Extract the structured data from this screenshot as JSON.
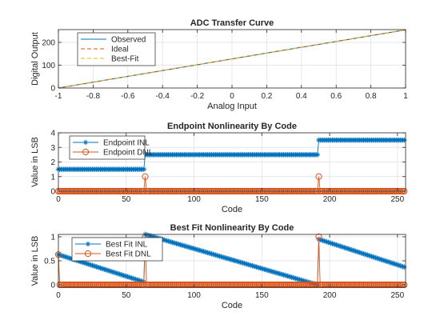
{
  "colors": {
    "blue": "#0072BD",
    "orange": "#D95319",
    "yellow": "#EDB120"
  },
  "chart_data": [
    {
      "type": "line",
      "title": "ADC Transfer Curve",
      "xlabel": "Analog Input",
      "ylabel": "Digital Output",
      "xlim": [
        -1,
        1
      ],
      "ylim": [
        0,
        256
      ],
      "xticks": [
        -1,
        -0.8,
        -0.6,
        -0.4,
        -0.2,
        0,
        0.2,
        0.4,
        0.6,
        0.8,
        1
      ],
      "xtick_labels": [
        "-1",
        "-0.8",
        "-0.6",
        "-0.4",
        "-0.2",
        "0",
        "0.2",
        "0.4",
        "0.6",
        "0.8",
        "1"
      ],
      "yticks": [
        0,
        100,
        200
      ],
      "ytick_labels": [
        "0",
        "100",
        "200"
      ],
      "grid": true,
      "legend": "top-left",
      "series": [
        {
          "name": "Observed",
          "color": "#0072BD",
          "style": "solid",
          "x": [
            -1,
            1
          ],
          "y": [
            0,
            255
          ]
        },
        {
          "name": "Ideal",
          "color": "#D95319",
          "style": "dashed",
          "x": [
            -1,
            1
          ],
          "y": [
            0,
            255
          ]
        },
        {
          "name": "Best-Fit",
          "color": "#EDB120",
          "style": "dashed",
          "x": [
            -1,
            1
          ],
          "y": [
            0,
            255
          ]
        }
      ]
    },
    {
      "type": "line",
      "title": "Endpoint Nonlinearity By Code",
      "xlabel": "Code",
      "ylabel": "Value in LSB",
      "xlim": [
        0,
        256
      ],
      "ylim": [
        0,
        4
      ],
      "xticks": [
        0,
        50,
        100,
        150,
        200,
        250
      ],
      "xtick_labels": [
        "0",
        "50",
        "100",
        "150",
        "200",
        "250"
      ],
      "yticks": [
        0,
        1,
        2,
        3,
        4
      ],
      "ytick_labels": [
        "0",
        "1",
        "2",
        "3",
        "4"
      ],
      "grid": true,
      "legend": "top-left",
      "series": [
        {
          "name": "Endpoint INL",
          "color": "#0072BD",
          "marker": "star",
          "segments": [
            {
              "from": 0,
              "to": 63,
              "value": 1.5
            },
            {
              "from": 64,
              "to": 191,
              "value": 2.5
            },
            {
              "from": 192,
              "to": 255,
              "value": 3.5
            }
          ]
        },
        {
          "name": "Endpoint DNL",
          "color": "#D95319",
          "marker": "circle",
          "base": 0,
          "spikes": [
            {
              "x": 64,
              "value": 1
            },
            {
              "x": 192,
              "value": 1
            }
          ]
        }
      ]
    },
    {
      "type": "line",
      "title": "Best Fit Nonlinearity By Code",
      "xlabel": "Code",
      "ylabel": "Value in LSB",
      "xlim": [
        0,
        256
      ],
      "ylim": [
        -0.05,
        1.05
      ],
      "xticks": [
        0,
        50,
        100,
        150,
        200,
        250
      ],
      "xtick_labels": [
        "0",
        "50",
        "100",
        "150",
        "200",
        "250"
      ],
      "yticks": [
        0,
        0.5,
        1
      ],
      "ytick_labels": [
        "0",
        "0.5",
        "1"
      ],
      "grid": true,
      "legend": "top-left",
      "series": [
        {
          "name": "Best Fit INL",
          "color": "#0072BD",
          "marker": "star",
          "segments": [
            {
              "from": 0,
              "to": 63,
              "start": 0.63,
              "end": 0.06
            },
            {
              "from": 64,
              "to": 191,
              "start": 1.05,
              "end": 0.0
            },
            {
              "from": 192,
              "to": 255,
              "start": 0.95,
              "end": 0.37
            }
          ]
        },
        {
          "name": "Best Fit DNL",
          "color": "#D95319",
          "marker": "circle",
          "base": 0,
          "first": 0.63,
          "spikes": [
            {
              "x": 64,
              "value": 1.0
            },
            {
              "x": 192,
              "value": 1.0
            }
          ]
        }
      ]
    }
  ]
}
